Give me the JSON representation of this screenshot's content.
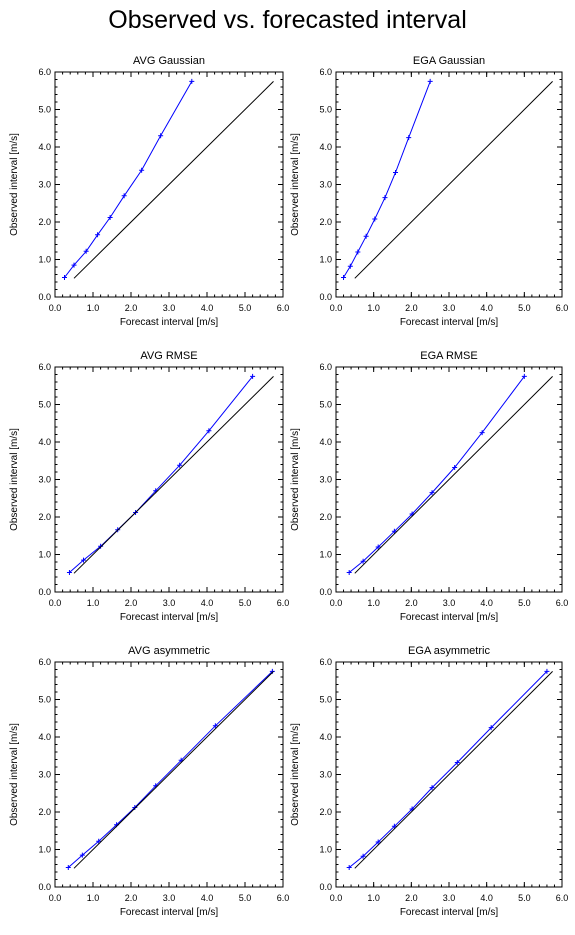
{
  "figure": {
    "title": "Observed vs. forecasted interval"
  },
  "colors": {
    "reliability_line": "#0000ff",
    "diagonal_line": "#000000",
    "axes": "#000000"
  },
  "chart_data": [
    {
      "type": "line",
      "title": "AVG Gaussian",
      "xlabel": "Forecast interval [m/s]",
      "ylabel": "Observed interval [m/s]",
      "xlim": [
        0,
        6
      ],
      "ylim": [
        0,
        6
      ],
      "xticks": [
        "0.0",
        "1.0",
        "2.0",
        "3.0",
        "4.0",
        "5.0",
        "6.0"
      ],
      "yticks": [
        "0.0",
        "1.0",
        "2.0",
        "3.0",
        "4.0",
        "5.0",
        "6.0"
      ],
      "grid": false,
      "series": [
        {
          "role": "reliability",
          "marker": "plus",
          "x": [
            0.25,
            0.5,
            0.82,
            1.12,
            1.45,
            1.82,
            2.28,
            2.78,
            3.6
          ],
          "y": [
            0.52,
            0.85,
            1.22,
            1.66,
            2.12,
            2.7,
            3.38,
            4.3,
            5.75
          ]
        },
        {
          "role": "diagonal",
          "x": [
            0.5,
            5.75
          ],
          "y": [
            0.5,
            5.75
          ]
        }
      ]
    },
    {
      "type": "line",
      "title": "EGA Gaussian",
      "xlabel": "Forecast interval [m/s]",
      "ylabel": "Observed interval [m/s]",
      "xlim": [
        0,
        6
      ],
      "ylim": [
        0,
        6
      ],
      "xticks": [
        "0.0",
        "1.0",
        "2.0",
        "3.0",
        "4.0",
        "5.0",
        "6.0"
      ],
      "yticks": [
        "0.0",
        "1.0",
        "2.0",
        "3.0",
        "4.0",
        "5.0",
        "6.0"
      ],
      "grid": false,
      "series": [
        {
          "role": "reliability",
          "marker": "plus",
          "x": [
            0.2,
            0.38,
            0.58,
            0.8,
            1.03,
            1.3,
            1.58,
            1.93,
            2.5
          ],
          "y": [
            0.52,
            0.82,
            1.2,
            1.62,
            2.08,
            2.65,
            3.32,
            4.25,
            5.75
          ]
        },
        {
          "role": "diagonal",
          "x": [
            0.5,
            5.75
          ],
          "y": [
            0.5,
            5.75
          ]
        }
      ]
    },
    {
      "type": "line",
      "title": "AVG RMSE",
      "xlabel": "Forecast interval [m/s]",
      "ylabel": "Observed interval [m/s]",
      "xlim": [
        0,
        6
      ],
      "ylim": [
        0,
        6
      ],
      "xticks": [
        "0.0",
        "1.0",
        "2.0",
        "3.0",
        "4.0",
        "5.0",
        "6.0"
      ],
      "yticks": [
        "0.0",
        "1.0",
        "2.0",
        "3.0",
        "4.0",
        "5.0",
        "6.0"
      ],
      "grid": false,
      "series": [
        {
          "role": "reliability",
          "marker": "plus",
          "x": [
            0.38,
            0.75,
            1.2,
            1.65,
            2.12,
            2.65,
            3.28,
            4.05,
            5.2
          ],
          "y": [
            0.52,
            0.85,
            1.22,
            1.66,
            2.12,
            2.7,
            3.38,
            4.3,
            5.75
          ]
        },
        {
          "role": "diagonal",
          "x": [
            0.5,
            5.75
          ],
          "y": [
            0.5,
            5.75
          ]
        }
      ]
    },
    {
      "type": "line",
      "title": "EGA RMSE",
      "xlabel": "Forecast interval [m/s]",
      "ylabel": "Observed interval [m/s]",
      "xlim": [
        0,
        6
      ],
      "ylim": [
        0,
        6
      ],
      "xticks": [
        "0.0",
        "1.0",
        "2.0",
        "3.0",
        "4.0",
        "5.0",
        "6.0"
      ],
      "yticks": [
        "0.0",
        "1.0",
        "2.0",
        "3.0",
        "4.0",
        "5.0",
        "6.0"
      ],
      "grid": false,
      "series": [
        {
          "role": "reliability",
          "marker": "plus",
          "x": [
            0.35,
            0.72,
            1.12,
            1.55,
            2.02,
            2.55,
            3.15,
            3.88,
            5.0
          ],
          "y": [
            0.52,
            0.82,
            1.2,
            1.62,
            2.08,
            2.65,
            3.32,
            4.25,
            5.75
          ]
        },
        {
          "role": "diagonal",
          "x": [
            0.5,
            5.75
          ],
          "y": [
            0.5,
            5.75
          ]
        }
      ]
    },
    {
      "type": "line",
      "title": "AVG asymmetric",
      "xlabel": "Forecast interval [m/s]",
      "ylabel": "Observed interval [m/s]",
      "xlim": [
        0,
        6
      ],
      "ylim": [
        0,
        6
      ],
      "xticks": [
        "0.0",
        "1.0",
        "2.0",
        "3.0",
        "4.0",
        "5.0",
        "6.0"
      ],
      "yticks": [
        "0.0",
        "1.0",
        "2.0",
        "3.0",
        "4.0",
        "5.0",
        "6.0"
      ],
      "grid": false,
      "series": [
        {
          "role": "reliability",
          "marker": "plus",
          "x": [
            0.35,
            0.72,
            1.15,
            1.62,
            2.1,
            2.65,
            3.32,
            4.22,
            5.72
          ],
          "y": [
            0.52,
            0.85,
            1.22,
            1.66,
            2.12,
            2.7,
            3.38,
            4.3,
            5.75
          ]
        },
        {
          "role": "diagonal",
          "x": [
            0.5,
            5.75
          ],
          "y": [
            0.5,
            5.75
          ]
        }
      ]
    },
    {
      "type": "line",
      "title": "EGA asymmetric",
      "xlabel": "Forecast interval [m/s]",
      "ylabel": "Observed interval [m/s]",
      "xlim": [
        0,
        6
      ],
      "ylim": [
        0,
        6
      ],
      "xticks": [
        "0.0",
        "1.0",
        "2.0",
        "3.0",
        "4.0",
        "5.0",
        "6.0"
      ],
      "yticks": [
        "0.0",
        "1.0",
        "2.0",
        "3.0",
        "4.0",
        "5.0",
        "6.0"
      ],
      "grid": false,
      "series": [
        {
          "role": "reliability",
          "marker": "plus",
          "x": [
            0.35,
            0.72,
            1.12,
            1.55,
            2.02,
            2.55,
            3.22,
            4.12,
            5.6
          ],
          "y": [
            0.52,
            0.82,
            1.2,
            1.62,
            2.08,
            2.65,
            3.32,
            4.25,
            5.75
          ]
        },
        {
          "role": "diagonal",
          "x": [
            0.5,
            5.75
          ],
          "y": [
            0.5,
            5.75
          ]
        }
      ]
    }
  ]
}
